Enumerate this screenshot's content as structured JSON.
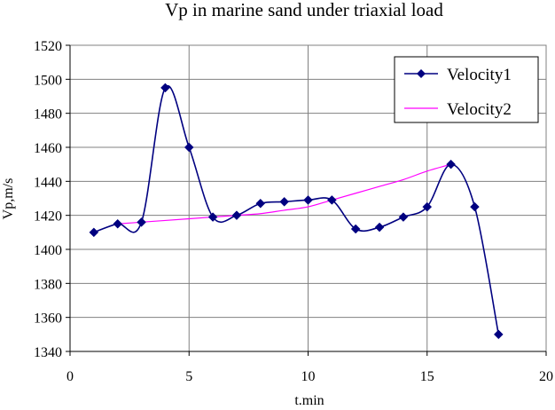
{
  "chart_data": {
    "type": "line",
    "title": "Vp in marine sand under triaxial load",
    "xlabel": "t.min",
    "ylabel": "Vp,m/s",
    "xlim": [
      0,
      20
    ],
    "ylim": [
      1340,
      1520
    ],
    "xticks": [
      0,
      5,
      10,
      15,
      20
    ],
    "yticks": [
      1340,
      1360,
      1380,
      1400,
      1420,
      1440,
      1460,
      1480,
      1500,
      1520
    ],
    "grid": true,
    "legend_position": "top-right",
    "series": [
      {
        "name": "Velocity1",
        "color": "#000080",
        "marker": "diamond",
        "smooth": true,
        "x": [
          1,
          2,
          3,
          4,
          5,
          6,
          7,
          8,
          9,
          10,
          11,
          12,
          13,
          14,
          15,
          16,
          17,
          18
        ],
        "y": [
          1410,
          1415,
          1416,
          1495,
          1460,
          1419,
          1420,
          1427,
          1428,
          1429,
          1429,
          1412,
          1413,
          1419,
          1425,
          1450,
          1425,
          1350
        ]
      },
      {
        "name": "Velocity2",
        "color": "#ff00ff",
        "marker": "none",
        "smooth": true,
        "x": [
          2,
          3,
          4,
          5,
          6,
          7,
          8,
          9,
          10,
          11,
          12,
          13,
          14,
          15,
          16
        ],
        "y": [
          1415,
          1416,
          1417,
          1418,
          1419,
          1420,
          1421,
          1423,
          1425,
          1429,
          1433,
          1437,
          1441,
          1446,
          1450
        ]
      }
    ]
  }
}
